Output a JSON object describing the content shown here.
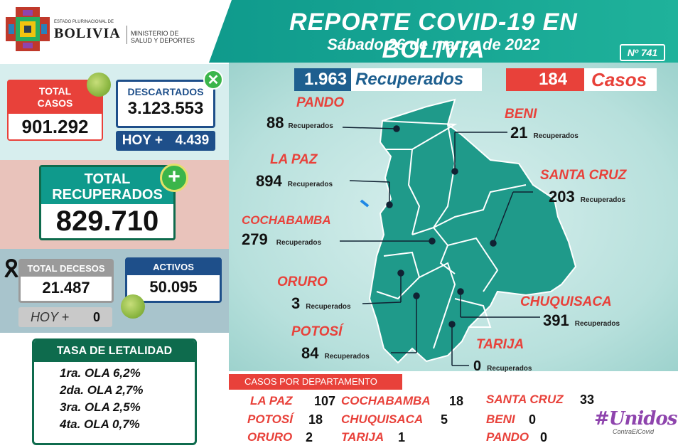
{
  "header": {
    "title": "REPORTE COVID-19 EN BOLIVIA",
    "date": "Sábado 26 de marzo de 2022",
    "report_number": "Nº 741"
  },
  "logo": {
    "state_small": "ESTADO PLURINACIONAL DE",
    "country": "BOLIVIA",
    "ministry_line1": "MINISTERIO DE",
    "ministry_line2": "SALUD Y DEPORTES"
  },
  "stats": {
    "total_casos_label1": "TOTAL",
    "total_casos_label2": "CASOS",
    "total_casos_value": "901.292",
    "descartados_label": "DESCARTADOS",
    "descartados_value": "3.123.553",
    "descartados_hoy_label": "HOY +",
    "descartados_hoy_value": "4.439",
    "recuperados_label1": "TOTAL",
    "recuperados_label2": "RECUPERADOS",
    "recuperados_value": "829.710",
    "decesos_label": "TOTAL DECESOS",
    "decesos_value": "21.487",
    "decesos_hoy_label": "HOY +",
    "decesos_hoy_value": "0",
    "activos_label": "ACTIVOS",
    "activos_value": "50.095"
  },
  "letalidad": {
    "title": "TASA DE LETALIDAD",
    "rows": [
      {
        "label": "1ra. OLA",
        "value": "6,2%"
      },
      {
        "label": "2da. OLA",
        "value": "2,7%"
      },
      {
        "label": "3ra. OLA",
        "value": "2,5%"
      },
      {
        "label": "4ta. OLA",
        "value": "0,7%"
      }
    ]
  },
  "summary": {
    "recuperados_value": "1.963",
    "recuperados_label": "Recuperados",
    "casos_value": "184",
    "casos_label": "Casos"
  },
  "departments": {
    "recuperados_word": "Recuperados",
    "pando": {
      "name": "PANDO",
      "value": "88"
    },
    "beni": {
      "name": "BENI",
      "value": "21"
    },
    "lapaz": {
      "name": "LA PAZ",
      "value": "894"
    },
    "santacruz": {
      "name": "SANTA CRUZ",
      "value": "203"
    },
    "cochabamba": {
      "name": "COCHABAMBA",
      "value": "279"
    },
    "oruro": {
      "name": "ORURO",
      "value": "3"
    },
    "chuquisaca": {
      "name": "CHUQUISACA",
      "value": "391"
    },
    "potosi": {
      "name": "POTOSÍ",
      "value": "84"
    },
    "tarija": {
      "name": "TARIJA",
      "value": "0"
    }
  },
  "casos_departamento": {
    "title": "CASOS POR DEPARTAMENTO",
    "items": [
      {
        "name": "LA PAZ",
        "value": "107"
      },
      {
        "name": "COCHABAMBA",
        "value": "18"
      },
      {
        "name": "SANTA CRUZ",
        "value": "33"
      },
      {
        "name": "POTOSÍ",
        "value": "18"
      },
      {
        "name": "CHUQUISACA",
        "value": "5"
      },
      {
        "name": "BENI",
        "value": "0"
      },
      {
        "name": "ORURO",
        "value": "2"
      },
      {
        "name": "TARIJA",
        "value": "1"
      },
      {
        "name": "PANDO",
        "value": "0"
      }
    ]
  },
  "campaign": {
    "hashtag": "#Unidos",
    "subtitle": "ContraElCovid"
  },
  "colors": {
    "teal": "#0f9a8c",
    "red": "#e8413a",
    "navy": "#1e4f8a",
    "green_dark": "#0e6b4d"
  }
}
